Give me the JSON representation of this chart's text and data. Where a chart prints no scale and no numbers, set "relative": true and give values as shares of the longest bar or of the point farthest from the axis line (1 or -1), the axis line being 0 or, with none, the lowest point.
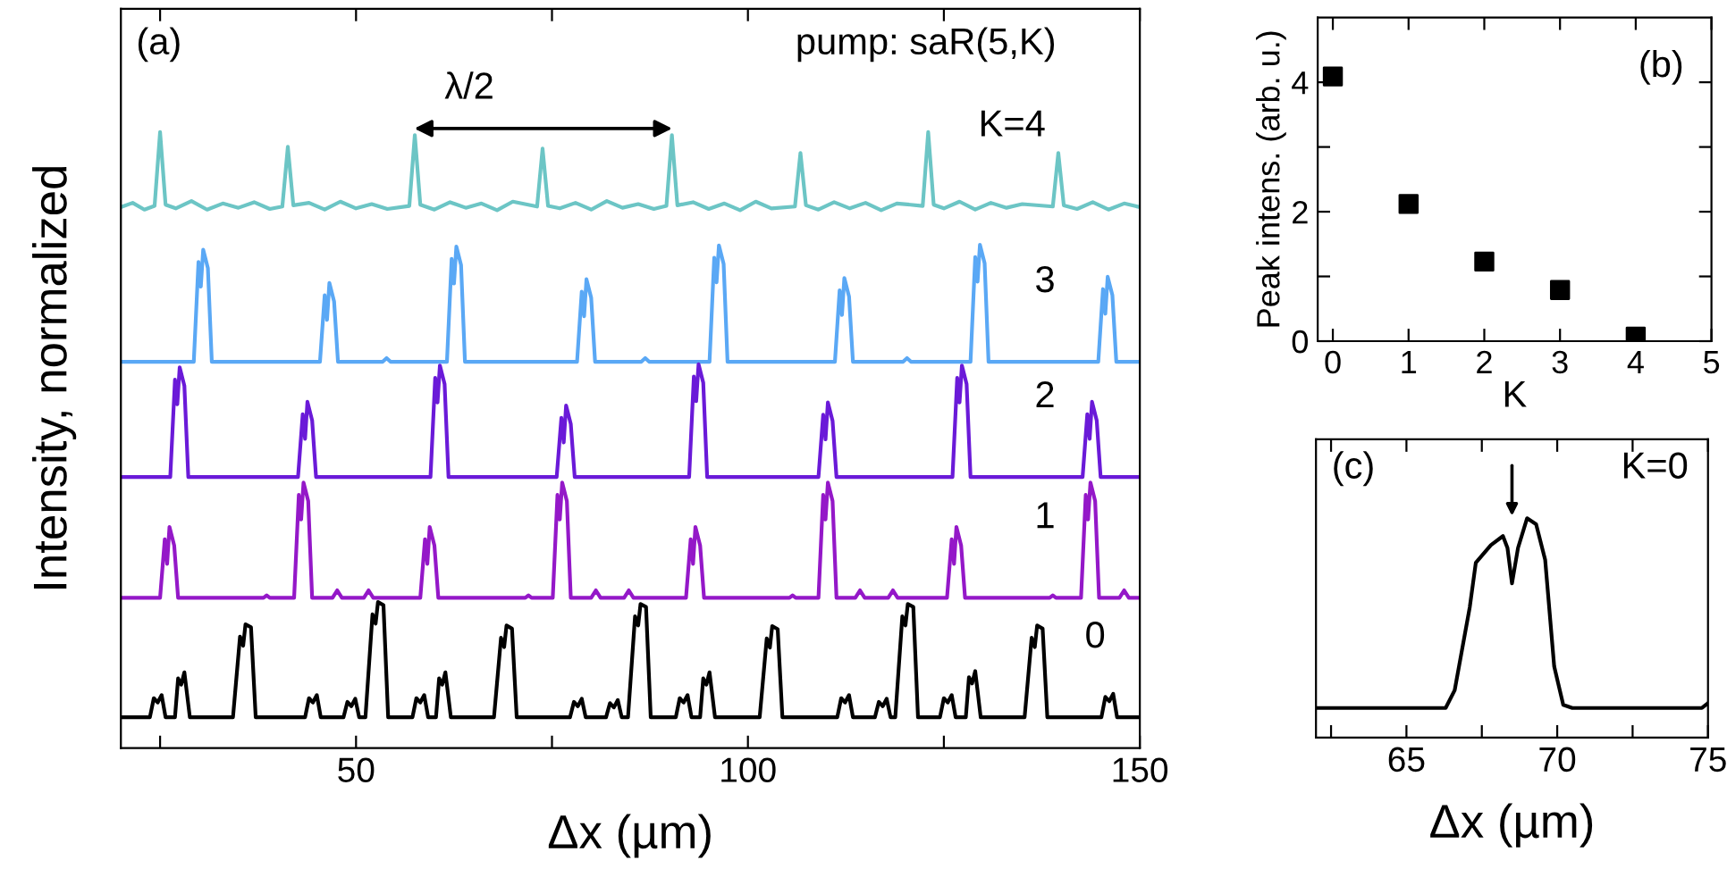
{
  "chart_data": [
    {
      "type": "line",
      "relative": true,
      "xlabel": "Δx (µm)",
      "ylabel": "Intensity, normalized",
      "xlim": [
        20,
        150
      ],
      "xticks": [
        {
          "value": 25,
          "label": null
        },
        50,
        {
          "value": 75,
          "label": null
        },
        100,
        {
          "value": 125,
          "label": null
        },
        150
      ],
      "tick_labels": "x",
      "annotations": [
        "(a)",
        "pump: saR(5,K)",
        "λ/2",
        {
          "text": "K=4",
          "x": 133.7,
          "y": 0.88
        },
        {
          "text": "3",
          "x": 137.9,
          "y": 0.627
        },
        {
          "text": "2",
          "x": 137.9,
          "y": 0.44
        },
        {
          "text": "1",
          "x": 137.9,
          "y": 0.244
        },
        {
          "text": "0",
          "x": 144.3,
          "y": 0.05
        }
      ],
      "series": [
        {
          "color": "#6cc5c5",
          "x": [
            20,
            21.5,
            23,
            24.3,
            25.0,
            25.7,
            27,
            29,
            31,
            33,
            35,
            37,
            39,
            40.6,
            41.3,
            42.0,
            44,
            46,
            48,
            50,
            52,
            54,
            56.8,
            57.5,
            58.2,
            60,
            62,
            64,
            66,
            68,
            70,
            73.1,
            73.8,
            74.5,
            76,
            78,
            80,
            82,
            84,
            86,
            88,
            89.6,
            90.3,
            91.0,
            93,
            95,
            97,
            99,
            101,
            103,
            106.0,
            106.7,
            107.4,
            109,
            111,
            113,
            115,
            117,
            119,
            122.3,
            123.0,
            123.7,
            125,
            127,
            129,
            131,
            133,
            135,
            138.9,
            139.6,
            140.3,
            142,
            144,
            146,
            148,
            150
          ],
          "values": [
            0.878,
            0.885,
            0.874,
            0.88,
            1.0,
            0.882,
            0.876,
            0.888,
            0.874,
            0.884,
            0.877,
            0.886,
            0.875,
            0.879,
            0.976,
            0.881,
            0.885,
            0.874,
            0.887,
            0.876,
            0.883,
            0.875,
            0.88,
            0.995,
            0.882,
            0.874,
            0.886,
            0.877,
            0.884,
            0.873,
            0.887,
            0.879,
            0.973,
            0.88,
            0.876,
            0.885,
            0.874,
            0.888,
            0.877,
            0.883,
            0.875,
            0.88,
            0.995,
            0.881,
            0.886,
            0.875,
            0.884,
            0.873,
            0.887,
            0.876,
            0.879,
            0.966,
            0.881,
            0.874,
            0.886,
            0.876,
            0.885,
            0.873,
            0.884,
            0.88,
            1.0,
            0.882,
            0.876,
            0.887,
            0.874,
            0.885,
            0.877,
            0.883,
            0.879,
            0.966,
            0.881,
            0.875,
            0.886,
            0.874,
            0.884,
            0.878
          ]
        },
        {
          "color": "#5aa8f5",
          "x": [
            20,
            29.3,
            29.9,
            30.2,
            30.5,
            31.1,
            31.6,
            40,
            45.4,
            46.0,
            46.3,
            46.6,
            47.2,
            47.7,
            53.4,
            53.9,
            54.4,
            61.6,
            62.2,
            62.5,
            62.8,
            63.4,
            63.9,
            70,
            78.2,
            78.8,
            79.1,
            79.4,
            80.0,
            80.5,
            86.4,
            86.9,
            87.4,
            95.1,
            95.7,
            96.0,
            96.3,
            96.9,
            97.4,
            104,
            111.1,
            111.7,
            112.0,
            112.3,
            112.9,
            113.4,
            119.8,
            120.3,
            120.8,
            128.4,
            129.0,
            129.3,
            129.6,
            130.2,
            130.7,
            138,
            144.7,
            145.3,
            145.6,
            145.9,
            146.5,
            147.0,
            150
          ],
          "values": [
            0.627,
            0.627,
            0.789,
            0.749,
            0.809,
            0.779,
            0.627,
            0.627,
            0.627,
            0.735,
            0.695,
            0.755,
            0.725,
            0.627,
            0.627,
            0.633,
            0.627,
            0.627,
            0.794,
            0.754,
            0.814,
            0.784,
            0.627,
            0.627,
            0.627,
            0.741,
            0.701,
            0.761,
            0.731,
            0.627,
            0.627,
            0.633,
            0.627,
            0.627,
            0.796,
            0.756,
            0.816,
            0.786,
            0.627,
            0.627,
            0.627,
            0.743,
            0.703,
            0.763,
            0.733,
            0.627,
            0.627,
            0.633,
            0.627,
            0.627,
            0.797,
            0.757,
            0.817,
            0.787,
            0.627,
            0.627,
            0.627,
            0.745,
            0.705,
            0.765,
            0.735,
            0.627,
            0.627
          ]
        },
        {
          "color": "#6a1ad8",
          "x": [
            20,
            26.3,
            26.9,
            27.2,
            27.5,
            28.1,
            28.6,
            36,
            42.6,
            43.2,
            43.5,
            43.8,
            44.4,
            44.9,
            52,
            59.5,
            60.1,
            60.4,
            60.7,
            61.3,
            61.8,
            69,
            75.6,
            76.2,
            76.5,
            76.8,
            77.4,
            77.9,
            85,
            92.5,
            93.1,
            93.4,
            93.7,
            94.3,
            94.8,
            102,
            109.0,
            109.6,
            109.9,
            110.2,
            110.8,
            111.3,
            119,
            126.1,
            126.7,
            127.0,
            127.3,
            127.9,
            128.4,
            136,
            142.7,
            143.3,
            143.6,
            143.9,
            144.5,
            145.0,
            150
          ],
          "values": [
            0.44,
            0.44,
            0.598,
            0.558,
            0.618,
            0.588,
            0.44,
            0.44,
            0.44,
            0.542,
            0.502,
            0.562,
            0.532,
            0.44,
            0.44,
            0.44,
            0.601,
            0.561,
            0.621,
            0.591,
            0.44,
            0.44,
            0.44,
            0.536,
            0.496,
            0.556,
            0.526,
            0.44,
            0.44,
            0.44,
            0.603,
            0.563,
            0.623,
            0.593,
            0.44,
            0.44,
            0.44,
            0.541,
            0.501,
            0.561,
            0.531,
            0.44,
            0.44,
            0.44,
            0.601,
            0.561,
            0.621,
            0.591,
            0.44,
            0.44,
            0.44,
            0.542,
            0.502,
            0.562,
            0.532,
            0.44,
            0.44
          ]
        },
        {
          "color": "#9418c8",
          "x": [
            20,
            25.0,
            25.6,
            25.9,
            26.2,
            26.8,
            27.3,
            38.2,
            38.6,
            39.0,
            42.1,
            42.7,
            43.0,
            43.3,
            43.9,
            44.4,
            47.0,
            47.6,
            48.2,
            51.0,
            51.6,
            52.2,
            58.2,
            58.8,
            59.1,
            59.4,
            60.0,
            60.5,
            71.6,
            72.0,
            72.4,
            75.1,
            75.7,
            76.0,
            76.3,
            76.9,
            77.4,
            80.0,
            80.6,
            81.2,
            84.2,
            84.8,
            85.4,
            92.1,
            92.7,
            93.0,
            93.3,
            93.9,
            94.4,
            105.3,
            105.7,
            106.1,
            109.0,
            109.6,
            109.9,
            110.2,
            110.8,
            111.3,
            113.7,
            114.3,
            114.9,
            117.9,
            118.5,
            119.1,
            125.4,
            126.0,
            126.3,
            126.6,
            127.2,
            127.7,
            138.5,
            138.9,
            139.3,
            142.5,
            143.1,
            143.4,
            143.7,
            144.3,
            144.8,
            147.4,
            148.0,
            148.6,
            150
          ],
          "values": [
            0.244,
            0.244,
            0.339,
            0.299,
            0.359,
            0.329,
            0.244,
            0.244,
            0.248,
            0.244,
            0.244,
            0.411,
            0.371,
            0.431,
            0.401,
            0.244,
            0.244,
            0.256,
            0.244,
            0.244,
            0.256,
            0.244,
            0.244,
            0.339,
            0.299,
            0.359,
            0.329,
            0.244,
            0.244,
            0.248,
            0.244,
            0.244,
            0.411,
            0.371,
            0.431,
            0.401,
            0.244,
            0.244,
            0.256,
            0.244,
            0.244,
            0.256,
            0.244,
            0.244,
            0.339,
            0.299,
            0.359,
            0.329,
            0.244,
            0.244,
            0.248,
            0.244,
            0.244,
            0.411,
            0.371,
            0.431,
            0.401,
            0.244,
            0.244,
            0.256,
            0.244,
            0.244,
            0.256,
            0.244,
            0.244,
            0.339,
            0.299,
            0.359,
            0.329,
            0.244,
            0.244,
            0.248,
            0.244,
            0.244,
            0.411,
            0.371,
            0.431,
            0.401,
            0.244,
            0.244,
            0.256,
            0.244,
            0.244
          ]
        },
        {
          "color": "#000000",
          "x": [
            20,
            23.7,
            24.2,
            24.7,
            25.2,
            25.7,
            26.9,
            27.3,
            27.7,
            28.1,
            28.8,
            34.3,
            35.2,
            35.6,
            35.9,
            36.6,
            37.2,
            43.5,
            44.0,
            44.5,
            45.0,
            45.5,
            48.4,
            48.9,
            49.4,
            49.9,
            50.4,
            51.2,
            52.1,
            52.5,
            52.8,
            53.5,
            54.1,
            57.2,
            57.7,
            58.2,
            58.7,
            59.2,
            60.2,
            60.6,
            61.0,
            61.4,
            62.1,
            67.6,
            68.5,
            68.9,
            69.2,
            69.9,
            70.5,
            77.3,
            77.8,
            78.3,
            78.8,
            79.3,
            81.9,
            82.4,
            82.9,
            83.4,
            83.9,
            84.7,
            85.6,
            86.0,
            86.3,
            87.0,
            87.6,
            90.8,
            91.3,
            91.8,
            92.3,
            92.8,
            93.9,
            94.3,
            94.7,
            95.1,
            95.8,
            101.5,
            102.4,
            102.8,
            103.1,
            103.8,
            104.4,
            111.4,
            111.9,
            112.4,
            112.9,
            113.4,
            116.2,
            116.7,
            117.2,
            117.7,
            118.2,
            118.8,
            119.7,
            120.1,
            120.4,
            121.1,
            121.7,
            124.5,
            125.0,
            125.5,
            126.0,
            126.5,
            127.8,
            128.2,
            128.6,
            129.0,
            129.7,
            135.3,
            136.2,
            136.6,
            136.9,
            137.6,
            138.2,
            145.1,
            145.6,
            146.1,
            146.6,
            147.1,
            150
          ],
          "values": [
            0.05,
            0.05,
            0.081,
            0.074,
            0.086,
            0.05,
            0.05,
            0.113,
            0.103,
            0.123,
            0.05,
            0.05,
            0.181,
            0.166,
            0.201,
            0.196,
            0.05,
            0.05,
            0.081,
            0.074,
            0.086,
            0.05,
            0.05,
            0.075,
            0.068,
            0.08,
            0.05,
            0.05,
            0.217,
            0.202,
            0.237,
            0.232,
            0.05,
            0.05,
            0.081,
            0.074,
            0.086,
            0.05,
            0.05,
            0.113,
            0.103,
            0.123,
            0.05,
            0.05,
            0.179,
            0.164,
            0.199,
            0.194,
            0.05,
            0.05,
            0.075,
            0.068,
            0.08,
            0.05,
            0.05,
            0.073,
            0.066,
            0.078,
            0.05,
            0.05,
            0.214,
            0.199,
            0.234,
            0.229,
            0.05,
            0.05,
            0.081,
            0.074,
            0.086,
            0.05,
            0.05,
            0.113,
            0.103,
            0.123,
            0.05,
            0.05,
            0.178,
            0.163,
            0.198,
            0.193,
            0.05,
            0.05,
            0.081,
            0.074,
            0.086,
            0.05,
            0.05,
            0.075,
            0.068,
            0.08,
            0.05,
            0.05,
            0.214,
            0.199,
            0.234,
            0.229,
            0.05,
            0.05,
            0.081,
            0.074,
            0.086,
            0.05,
            0.05,
            0.115,
            0.105,
            0.125,
            0.05,
            0.05,
            0.179,
            0.164,
            0.199,
            0.194,
            0.05,
            0.05,
            0.083,
            0.076,
            0.088,
            0.05,
            0.05
          ]
        }
      ]
    },
    {
      "type": "scatter",
      "xlabel": "K",
      "ylabel": "Peak intens. (arb. u.)",
      "xlim": [
        -0.2,
        5
      ],
      "ylim": [
        0,
        5
      ],
      "xticks": [
        0,
        1,
        2,
        3,
        4,
        5
      ],
      "yticks": [
        0,
        {
          "value": 1,
          "label": null
        },
        2,
        {
          "value": 3,
          "label": null
        },
        4
      ],
      "marker": "square",
      "annotations": [
        "(b)"
      ],
      "series": [
        {
          "color": "#000000",
          "x": [
            0,
            1,
            2,
            3,
            4
          ],
          "values": [
            4.09,
            2.12,
            1.23,
            0.79,
            0.07
          ]
        }
      ]
    },
    {
      "type": "line",
      "relative": true,
      "xlabel": "Δx (µm)",
      "xlim": [
        62,
        75
      ],
      "xticks": [
        {
          "value": 62.5,
          "label": null
        },
        65,
        {
          "value": 67.5,
          "label": null
        },
        70,
        {
          "value": 72.5,
          "label": null
        },
        75
      ],
      "tick_labels": "x",
      "annotations": [
        "(c)",
        "K=0"
      ],
      "series": [
        {
          "color": "#000000",
          "x": [
            62.0,
            64,
            66.3,
            66.6,
            67.1,
            67.3,
            67.8,
            68.2,
            68.35,
            68.5,
            68.7,
            69.0,
            69.3,
            69.6,
            69.9,
            70.2,
            70.5,
            74.8,
            75.0
          ],
          "values": [
            0.135,
            0.135,
            0.135,
            0.216,
            0.595,
            0.797,
            0.878,
            0.919,
            0.865,
            0.703,
            0.865,
            1.0,
            0.973,
            0.811,
            0.324,
            0.149,
            0.135,
            0.135,
            0.157
          ]
        }
      ]
    }
  ]
}
